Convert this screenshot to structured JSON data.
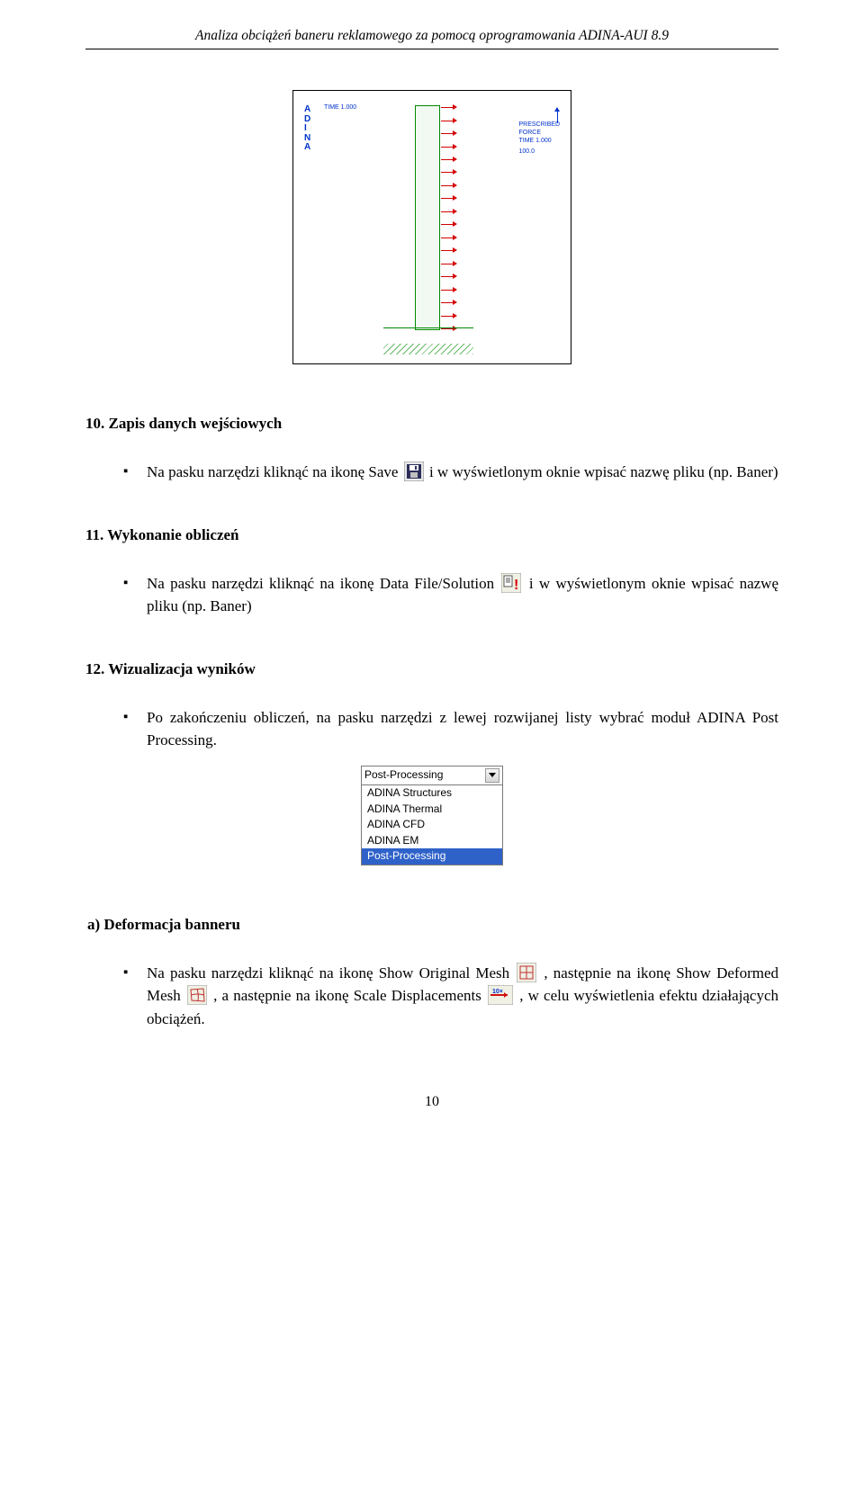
{
  "header_title": "Analiza obciążeń baneru reklamowego za pomocą oprogramowania ADINA-AUI 8.9",
  "figure": {
    "adina": "A\nD\nI\nN\nA",
    "time_label": "TIME 1.000",
    "legend_line1": "PRESCRIBED",
    "legend_line2": "FORCE",
    "legend_line3": "TIME 1.000",
    "legend_line4": "100.0",
    "arrow_count": 18
  },
  "s10": {
    "heading": "10.  Zapis danych wejściowych",
    "bullet_pre": "Na pasku narzędzi kliknąć na ikonę Save ",
    "bullet_post": " i w wyświetlonym oknie wpisać nazwę pliku (np. Baner)"
  },
  "s11": {
    "heading": "11.  Wykonanie obliczeń",
    "bullet_pre": "Na pasku narzędzi kliknąć na ikonę Data File/Solution ",
    "bullet_post": " i w wyświetlonym oknie wpisać nazwę pliku (np. Baner)"
  },
  "s12": {
    "heading": "12.  Wizualizacja wyników",
    "bullet": "Po zakończeniu obliczeń, na pasku narzędzi z lewej rozwijanej listy wybrać moduł ADINA Post Processing."
  },
  "dropdown": {
    "selected_display": "Post-Processing",
    "items": [
      "ADINA Structures",
      "ADINA Thermal",
      "ADINA CFD",
      "ADINA EM",
      "Post-Processing"
    ],
    "highlighted_index": 4
  },
  "sub_a": {
    "heading": "a)  Deformacja banneru",
    "t1": "Na pasku narzędzi kliknąć na ikonę Show Original Mesh ",
    "t2": ", następnie na ikonę Show Deformed Mesh ",
    "t3": ", a następnie na ikonę Scale Displacements ",
    "t4": ", w celu wyświetlenia efektu działających obciążeń."
  },
  "page_number": "10",
  "icons": {
    "save_bg": "#e8e8e8",
    "solution_bg": "#f0f0e4",
    "mesh_grid": "#c03030",
    "mesh_def": "#c03030",
    "scale_red": "#d01010",
    "scale_blue": "#0033cc"
  }
}
